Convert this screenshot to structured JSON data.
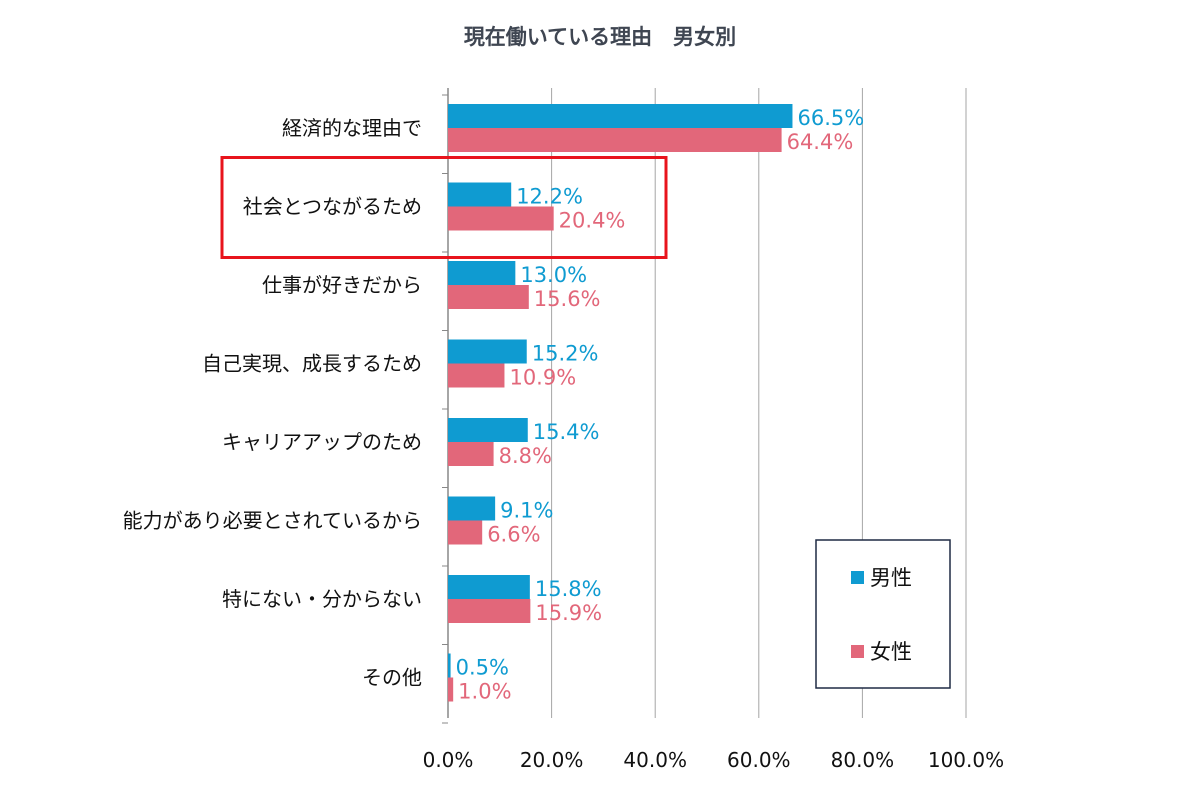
{
  "chart_data": {
    "type": "bar",
    "orientation": "horizontal",
    "title": "現在働いている理由　男女別",
    "categories": [
      "経済的な理由で",
      "社会とつながるため",
      "仕事が好きだから",
      "自己実現、成長するため",
      "キャリアアップのため",
      "能力があり必要とされているから",
      "特にない・分からない",
      "その他"
    ],
    "series": [
      {
        "name": "男性",
        "color": "#0f9bd1",
        "values": [
          66.5,
          12.2,
          13.0,
          15.2,
          15.4,
          9.1,
          15.8,
          0.5
        ],
        "labels": [
          "66.5%",
          "12.2%",
          "13.0%",
          "15.2%",
          "15.4%",
          "9.1%",
          "15.8%",
          "0.5%"
        ]
      },
      {
        "name": "女性",
        "color": "#e2677a",
        "values": [
          64.4,
          20.4,
          15.6,
          10.9,
          8.8,
          6.6,
          15.9,
          1.0
        ],
        "labels": [
          "64.4%",
          "20.4%",
          "15.6%",
          "10.9%",
          "8.8%",
          "6.6%",
          "15.9%",
          "1.0%"
        ]
      }
    ],
    "x_ticks": [
      "0.0%",
      "20.0%",
      "40.0%",
      "60.0%",
      "80.0%",
      "100.0%"
    ],
    "xlim": [
      0,
      100
    ],
    "grid": true,
    "legend_position": "bottom-right",
    "highlighted_category": "社会とつながるため",
    "highlight_color": "#e8141c"
  }
}
